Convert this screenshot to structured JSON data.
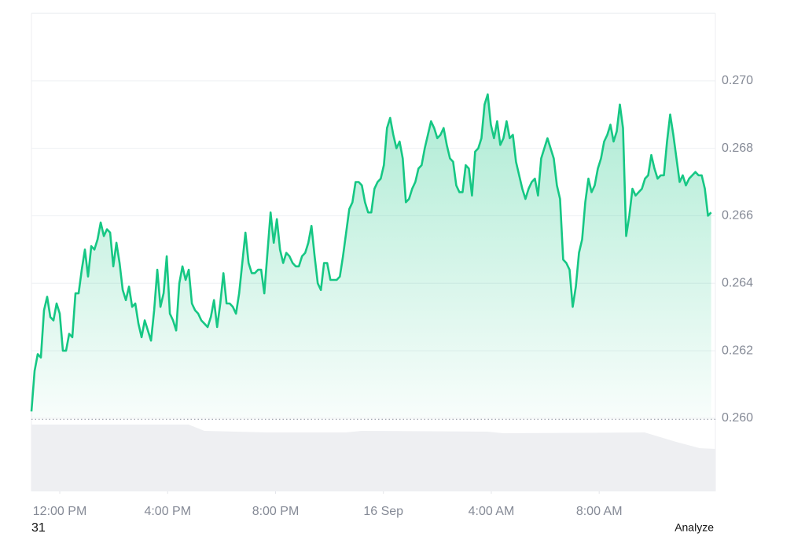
{
  "chart_data": {
    "type": "area",
    "series": [
      {
        "color": "#16c784",
        "x": [
          -63,
          -56,
          -49,
          -42,
          -35,
          -28,
          -21,
          -14,
          -7,
          0,
          7,
          14,
          21,
          28,
          35,
          42,
          49,
          56,
          63,
          70,
          77,
          84,
          91,
          98,
          105,
          112,
          119,
          126,
          133,
          140,
          147,
          154,
          161,
          168,
          175,
          182,
          189,
          196,
          203,
          210,
          217,
          224,
          231,
          238,
          245,
          252,
          259,
          266,
          273,
          280,
          287,
          294,
          301,
          308,
          315,
          322,
          329,
          336,
          343,
          350,
          357,
          364,
          371,
          378,
          385,
          392,
          399,
          406,
          413,
          420,
          427,
          434,
          441,
          448,
          455,
          462,
          469,
          476,
          483,
          490,
          497,
          504,
          511,
          518,
          525,
          532,
          539,
          546,
          553,
          560,
          567,
          574,
          581,
          588,
          595,
          602,
          609,
          616,
          623,
          630,
          637,
          644,
          651,
          658,
          665,
          672,
          679,
          686,
          693,
          700,
          707,
          714,
          721,
          728,
          735,
          742,
          749,
          756,
          763,
          770,
          777,
          784,
          791,
          798,
          805,
          812,
          819,
          826,
          833,
          840,
          847,
          854,
          861,
          868,
          875,
          882,
          889,
          896,
          903,
          910,
          917,
          924,
          931,
          938,
          945,
          952,
          959,
          966,
          973,
          980,
          987,
          994,
          1001,
          1008,
          1015,
          1022,
          1029,
          1036,
          1043,
          1050,
          1057,
          1064,
          1071,
          1078,
          1085,
          1092,
          1099,
          1106,
          1113,
          1120,
          1127,
          1134,
          1141,
          1148,
          1155,
          1162,
          1169,
          1176,
          1183,
          1190,
          1197,
          1204,
          1211,
          1218,
          1225,
          1232,
          1239,
          1246,
          1253,
          1260,
          1267,
          1274,
          1281,
          1288,
          1295,
          1302,
          1309,
          1316,
          1323,
          1330,
          1337,
          1344,
          1351,
          1358,
          1365,
          1372,
          1379,
          1386,
          1393,
          1400,
          1407,
          1414,
          1421,
          1428,
          1435,
          1442,
          1449
        ],
        "values": [
          0.2602,
          0.2614,
          0.2619,
          0.2618,
          0.2632,
          0.2636,
          0.263,
          0.2629,
          0.2634,
          0.2631,
          0.262,
          0.262,
          0.2625,
          0.2624,
          0.2637,
          0.2637,
          0.2644,
          0.265,
          0.2642,
          0.2651,
          0.265,
          0.2653,
          0.2658,
          0.2654,
          0.2656,
          0.2655,
          0.2645,
          0.2652,
          0.2646,
          0.2638,
          0.2635,
          0.2639,
          0.2633,
          0.2634,
          0.2628,
          0.2624,
          0.2629,
          0.2626,
          0.2623,
          0.2632,
          0.2644,
          0.2633,
          0.2637,
          0.2648,
          0.2631,
          0.2629,
          0.2626,
          0.264,
          0.2645,
          0.2641,
          0.2644,
          0.2634,
          0.2632,
          0.2631,
          0.2629,
          0.2628,
          0.2627,
          0.263,
          0.2635,
          0.2627,
          0.2634,
          0.2643,
          0.2634,
          0.2634,
          0.2633,
          0.2631,
          0.2637,
          0.2646,
          0.2655,
          0.2646,
          0.2643,
          0.2643,
          0.2644,
          0.2644,
          0.2637,
          0.2649,
          0.2661,
          0.2652,
          0.2659,
          0.265,
          0.2646,
          0.2649,
          0.2648,
          0.2646,
          0.2645,
          0.2645,
          0.2648,
          0.2649,
          0.2652,
          0.2657,
          0.2648,
          0.264,
          0.2638,
          0.2646,
          0.2646,
          0.2641,
          0.2641,
          0.2641,
          0.2642,
          0.2648,
          0.2655,
          0.2662,
          0.2664,
          0.267,
          0.267,
          0.2669,
          0.2664,
          0.2661,
          0.2661,
          0.2668,
          0.267,
          0.2671,
          0.2675,
          0.2686,
          0.2689,
          0.2684,
          0.268,
          0.2682,
          0.2677,
          0.2664,
          0.2665,
          0.2668,
          0.267,
          0.2674,
          0.2675,
          0.268,
          0.2684,
          0.2688,
          0.2686,
          0.2683,
          0.2684,
          0.2686,
          0.2681,
          0.2677,
          0.2676,
          0.2669,
          0.2667,
          0.2667,
          0.2675,
          0.2674,
          0.2666,
          0.2679,
          0.268,
          0.2683,
          0.2693,
          0.2696,
          0.2687,
          0.2683,
          0.2688,
          0.2681,
          0.2683,
          0.2688,
          0.2683,
          0.2684,
          0.2676,
          0.2672,
          0.2668,
          0.2665,
          0.2668,
          0.267,
          0.2671,
          0.2666,
          0.2677,
          0.268,
          0.2683,
          0.268,
          0.2677,
          0.2669,
          0.2665,
          0.2647,
          0.2646,
          0.2644,
          0.2633,
          0.2639,
          0.2649,
          0.2653,
          0.2664,
          0.2671,
          0.2667,
          0.2669,
          0.2674,
          0.2677,
          0.2682,
          0.2684,
          0.2687,
          0.2682,
          0.2685,
          0.2693,
          0.2686,
          0.2654,
          0.266,
          0.2668,
          0.2666,
          0.2667,
          0.2668,
          0.2671,
          0.2672,
          0.2678,
          0.2674,
          0.2671,
          0.2672,
          0.2672,
          0.2682,
          0.269,
          0.2684,
          0.2677,
          0.267,
          0.2672,
          0.2669,
          0.2671,
          0.2672,
          0.2673,
          0.2672,
          0.2672,
          0.2668,
          0.266,
          0.2661
        ]
      }
    ],
    "xlim": [
      -63,
      1455
    ],
    "xticks": [
      {
        "value": 0,
        "label": "12:00 PM"
      },
      {
        "value": 240,
        "label": "4:00 PM"
      },
      {
        "value": 480,
        "label": "8:00 PM"
      },
      {
        "value": 720,
        "label": "16 Sep"
      },
      {
        "value": 960,
        "label": "4:00 AM"
      },
      {
        "value": 1200,
        "label": "8:00 AM"
      }
    ],
    "ylim": [
      0.25783,
      0.272
    ],
    "yticks": [
      {
        "value": 0.26,
        "label": "0.260"
      },
      0.262,
      0.264,
      0.266,
      0.268,
      {
        "value": 0.27,
        "label": "0.270"
      }
    ],
    "grid": true
  },
  "footer": {
    "left": "31",
    "right": "Analyze"
  }
}
